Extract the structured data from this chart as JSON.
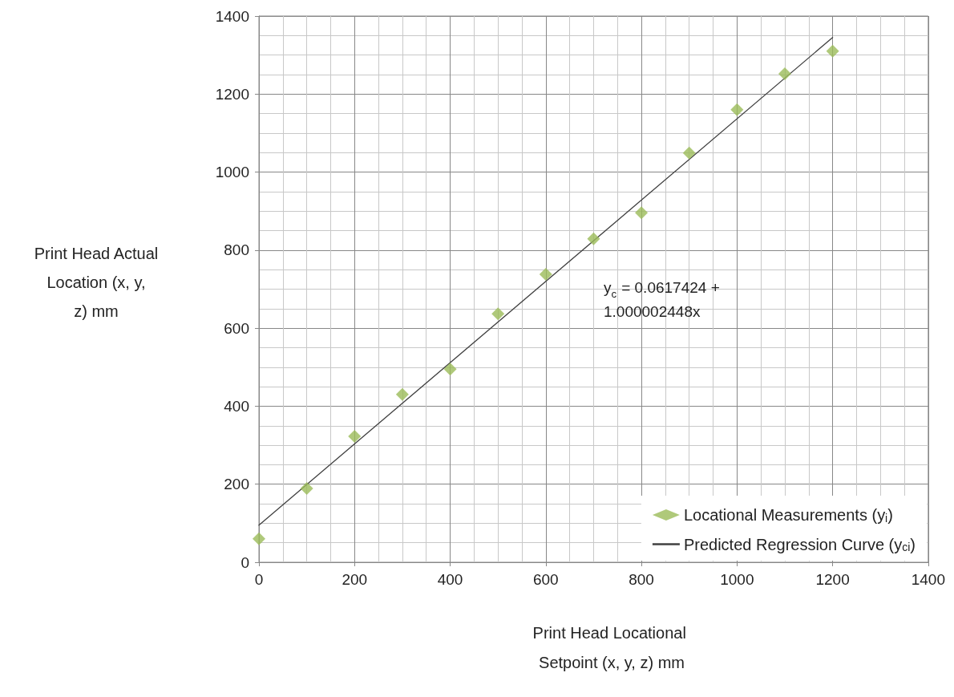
{
  "chart_data": {
    "type": "scatter",
    "xlabel": "Print Head Locational Setpoint (x, y, z) mm",
    "ylabel": "Print Head Actual Location (x, y, z) mm",
    "annotations": [
      "y$_{c}$ = 0.0617424 + 1.000002448x"
    ],
    "xlim": [
      0,
      1400
    ],
    "xticks": [
      0,
      200,
      400,
      600,
      800,
      1000,
      1200,
      1400
    ],
    "ylim": [
      0,
      1400
    ],
    "yticks": [
      0,
      200,
      400,
      600,
      800,
      1000,
      1200,
      1400
    ],
    "grid": true,
    "legend": "bottom right",
    "series": [
      {
        "name": "Locational Measurements (y$_{i}$)",
        "marker": "diamond",
        "color": "#9bbb59",
        "x": [
          0,
          100,
          200,
          300,
          400,
          500,
          600,
          700,
          800,
          900,
          1000,
          1100,
          1200
        ],
        "values": [
          60,
          189,
          323,
          430,
          495,
          637,
          738,
          829,
          896,
          1049,
          1160,
          1252,
          1310
        ]
      },
      {
        "name": "Predicted Regression Curve (y$_{ci}$)",
        "type": "line",
        "marker": "none",
        "color": "#404040",
        "x": [
          0,
          1200
        ],
        "values": [
          95,
          1345
        ]
      }
    ]
  }
}
